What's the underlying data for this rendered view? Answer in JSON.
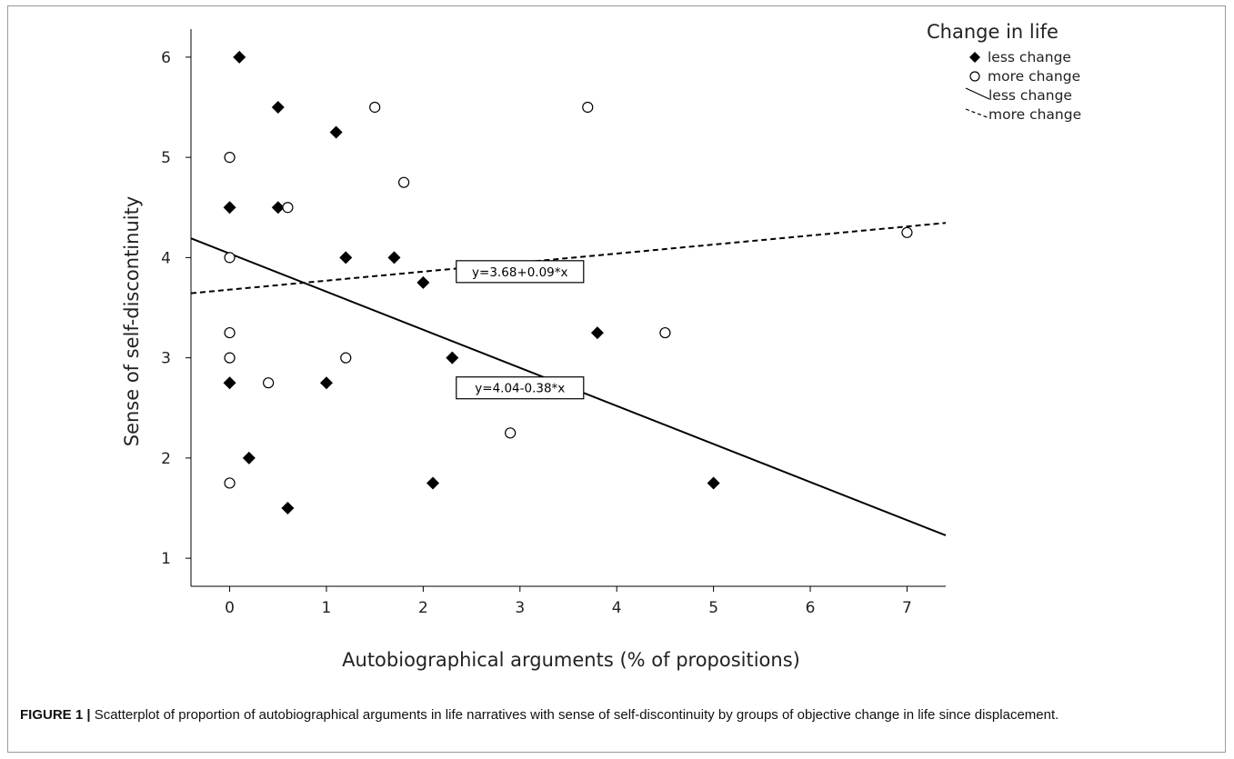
{
  "chart_data": {
    "type": "scatter",
    "xlabel": "Autobiographical arguments (% of propositions)",
    "ylabel": "Sense of self-discontinuity",
    "xlim": [
      -0.4,
      7.4
    ],
    "ylim": [
      0.72,
      6.28
    ],
    "x_ticks": [
      0,
      1,
      2,
      3,
      4,
      5,
      6,
      7
    ],
    "y_ticks": [
      1,
      2,
      3,
      4,
      5,
      6
    ],
    "grid": false,
    "legend": {
      "title": "Change in life",
      "position": "top-right",
      "items": [
        {
          "label": "less change",
          "kind": "diamond"
        },
        {
          "label": "more change",
          "kind": "circle"
        },
        {
          "label": "less change",
          "kind": "solid-line"
        },
        {
          "label": "more change",
          "kind": "dashed-line"
        }
      ]
    },
    "series": [
      {
        "name": "less change",
        "marker": "diamond",
        "points": [
          [
            0.1,
            6.0
          ],
          [
            0.5,
            5.5
          ],
          [
            1.1,
            5.25
          ],
          [
            0.0,
            4.5
          ],
          [
            0.5,
            4.5
          ],
          [
            1.2,
            4.0
          ],
          [
            1.7,
            4.0
          ],
          [
            2.0,
            3.75
          ],
          [
            3.8,
            3.25
          ],
          [
            2.3,
            3.0
          ],
          [
            0.0,
            2.75
          ],
          [
            1.0,
            2.75
          ],
          [
            0.2,
            2.0
          ],
          [
            2.1,
            1.75
          ],
          [
            0.6,
            1.5
          ],
          [
            5.0,
            1.75
          ]
        ],
        "fit": {
          "intercept": 4.04,
          "slope": -0.38,
          "style": "solid",
          "label": "y=4.04-0.38*x"
        }
      },
      {
        "name": "more change",
        "marker": "circle",
        "points": [
          [
            1.5,
            5.5
          ],
          [
            3.7,
            5.5
          ],
          [
            0.0,
            5.0
          ],
          [
            1.8,
            4.75
          ],
          [
            0.6,
            4.5
          ],
          [
            0.0,
            4.0
          ],
          [
            7.0,
            4.25
          ],
          [
            0.0,
            3.25
          ],
          [
            4.5,
            3.25
          ],
          [
            0.0,
            3.0
          ],
          [
            1.2,
            3.0
          ],
          [
            0.4,
            2.75
          ],
          [
            2.9,
            2.25
          ],
          [
            0.0,
            1.75
          ]
        ],
        "fit": {
          "intercept": 3.68,
          "slope": 0.09,
          "style": "dashed",
          "label": "y=3.68+0.09*x"
        }
      }
    ]
  },
  "caption": {
    "label": "FIGURE 1 |",
    "text": " Scatterplot of  proportion of autobiographical arguments in life narratives with sense of self-discontinuity by groups of objective change in life since displacement."
  }
}
